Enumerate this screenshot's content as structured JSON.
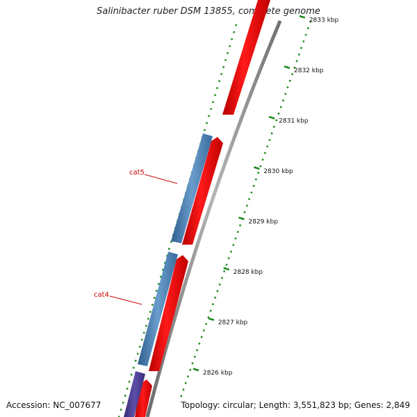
{
  "title": "Salinibacter ruber DSM 13855, complete genome",
  "footer": {
    "accession": "Accession: NC_007677",
    "info": "Topology: circular; Length: 3,551,823 bp; Genes: 2,849"
  },
  "colors": {
    "forward_cds": "#ff0000",
    "reverse_cds": "#4f86b8",
    "reverse_other": "#4b3d8f",
    "backbone": "#8c8c8c",
    "ticks": "#1a8a1a",
    "gene_label": "#cc0000"
  },
  "scale": {
    "unit": "kbp",
    "ticks": [
      {
        "position_kbp": 2826,
        "label": "2826 kbp"
      },
      {
        "position_kbp": 2827,
        "label": "2827 kbp"
      },
      {
        "position_kbp": 2828,
        "label": "2828 kbp"
      },
      {
        "position_kbp": 2829,
        "label": "2829 kbp"
      },
      {
        "position_kbp": 2830,
        "label": "2830 kbp"
      },
      {
        "position_kbp": 2831,
        "label": "2831 kbp"
      },
      {
        "position_kbp": 2832,
        "label": "2832 kbp"
      },
      {
        "position_kbp": 2833,
        "label": "2833 kbp"
      }
    ]
  },
  "genes": [
    {
      "name": "cat5",
      "strand": "reverse"
    },
    {
      "name": "cat4",
      "strand": "reverse"
    }
  ]
}
